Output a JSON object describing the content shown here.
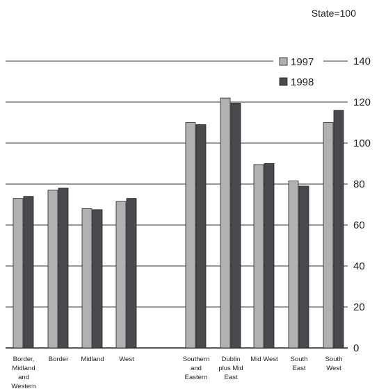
{
  "chart_data": {
    "type": "bar",
    "unit_label": "State=100",
    "categories": [
      [
        "Border,",
        "Midland",
        "and",
        "Western"
      ],
      [
        "Border"
      ],
      [
        "Midland"
      ],
      [
        "West"
      ],
      [
        "Southern",
        "and",
        "Eastern"
      ],
      [
        "Dublin",
        "plus Mid",
        "East"
      ],
      [
        "Mid West"
      ],
      [
        "South",
        "East"
      ],
      [
        "South",
        "West"
      ]
    ],
    "series": [
      {
        "name": "1997",
        "color": "#b3b0b4",
        "values": [
          73,
          77,
          68,
          71.5,
          110,
          122,
          89.5,
          81.5,
          110
        ]
      },
      {
        "name": "1998",
        "color": "#4a4a4e",
        "values": [
          74,
          78,
          67.5,
          73,
          109,
          119.5,
          90,
          79,
          116
        ]
      }
    ],
    "ylim": [
      0,
      140
    ],
    "yticks": [
      "0",
      "20",
      "40",
      "60",
      "80",
      "100",
      "120",
      "140"
    ],
    "grid": true,
    "legend_position": "top-right",
    "axis_position": "right"
  }
}
